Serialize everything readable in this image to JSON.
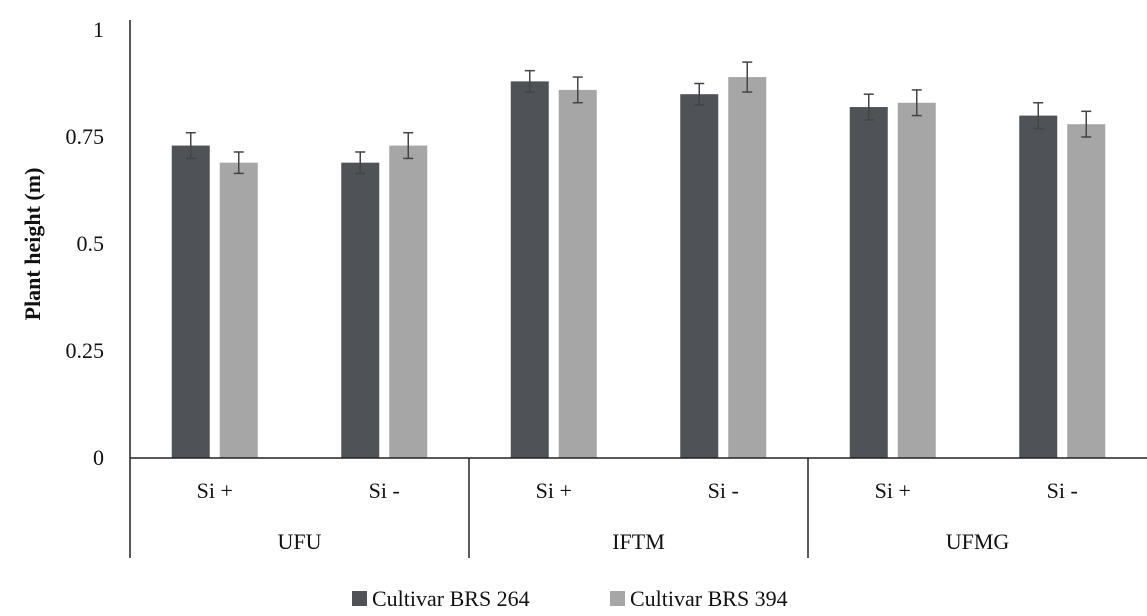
{
  "chart_data": {
    "type": "bar",
    "title": "",
    "ylabel": "Plant height (m)",
    "xlabel": "",
    "ylim": [
      0,
      1
    ],
    "yticks": [
      "0",
      "0.25",
      "0.5",
      "0.75",
      "1"
    ],
    "ytick_values": [
      0,
      0.25,
      0.5,
      0.75,
      1
    ],
    "categories": [
      "Si +",
      "Si -",
      "Si +",
      "Si -",
      "Si +",
      "Si -"
    ],
    "groups": [
      {
        "label": "UFU",
        "span": 2
      },
      {
        "label": "IFTM",
        "span": 2
      },
      {
        "label": "UFMG",
        "span": 2
      }
    ],
    "series": [
      {
        "name": "Cultivar BRS 264",
        "color": "#4f5256",
        "values": [
          0.73,
          0.69,
          0.88,
          0.85,
          0.82,
          0.8
        ],
        "errors": [
          0.03,
          0.025,
          0.025,
          0.025,
          0.03,
          0.03
        ]
      },
      {
        "name": "Cultivar BRS 394",
        "color": "#a6a6a6",
        "values": [
          0.69,
          0.73,
          0.86,
          0.89,
          0.83,
          0.78
        ],
        "errors": [
          0.025,
          0.03,
          0.03,
          0.035,
          0.03,
          0.03
        ]
      }
    ],
    "grid": false,
    "legend_position": "bottom"
  }
}
